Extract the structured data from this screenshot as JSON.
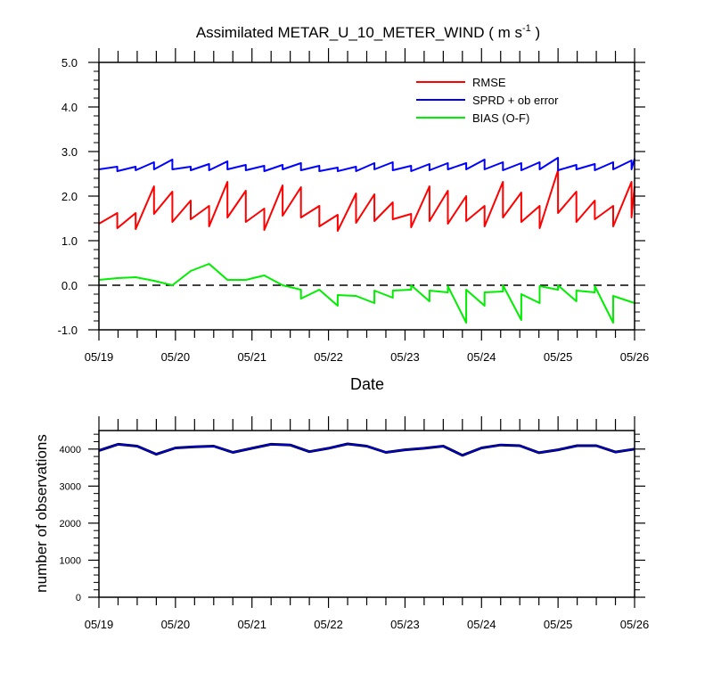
{
  "chart_data": [
    {
      "type": "line",
      "title_main": "Assimilated METAR_U_10_METER_WIND ( m s",
      "title_sup": "-1",
      "title_end": " )",
      "xlabel": "Date",
      "ylabel": "",
      "x_ticks": [
        "05/19",
        "05/20",
        "05/21",
        "05/22",
        "05/23",
        "05/24",
        "05/25",
        "05/26"
      ],
      "xlim": [
        "05/19 00Z",
        "05/26 00Z"
      ],
      "ylim": [
        -1.0,
        5.0
      ],
      "y_ticks": [
        "-1.0",
        "0.0",
        "1.0",
        "2.0",
        "3.0",
        "4.0",
        "5.0"
      ],
      "reference_line": {
        "y": 0.0,
        "style": "dashed"
      },
      "legend_position": "top-right",
      "series": [
        {
          "name": "RMSE",
          "color": "#ff0000",
          "x_days": [
            0.0,
            0.24,
            0.24,
            0.48,
            0.48,
            0.72,
            0.72,
            0.96,
            0.96,
            1.2,
            1.2,
            1.44,
            1.44,
            1.68,
            1.68,
            1.92,
            1.92,
            2.16,
            2.16,
            2.4,
            2.4,
            2.64,
            2.64,
            2.88,
            2.88,
            3.12,
            3.12,
            3.36,
            3.36,
            3.6,
            3.6,
            3.84,
            3.84,
            4.08,
            4.08,
            4.32,
            4.32,
            4.56,
            4.56,
            4.8,
            4.8,
            5.04,
            5.04,
            5.28,
            5.28,
            5.52,
            5.52,
            5.76,
            5.76,
            6.0,
            6.0,
            6.24,
            6.24,
            6.48,
            6.48,
            6.72,
            6.72,
            6.96,
            6.96,
            7.0
          ],
          "values": [
            1.38,
            1.62,
            1.28,
            1.62,
            1.26,
            2.22,
            1.6,
            2.1,
            1.42,
            1.9,
            1.48,
            1.78,
            1.32,
            2.32,
            1.52,
            2.12,
            1.42,
            1.72,
            1.24,
            2.24,
            1.56,
            2.2,
            1.52,
            1.78,
            1.32,
            1.58,
            1.22,
            2.06,
            1.4,
            2.04,
            1.44,
            1.86,
            1.48,
            1.6,
            1.3,
            2.22,
            1.44,
            2.12,
            1.38,
            2.0,
            1.44,
            1.78,
            1.32,
            2.32,
            1.52,
            2.08,
            1.42,
            1.78,
            1.28,
            2.58,
            1.62,
            2.1,
            1.42,
            1.9,
            1.48,
            1.78,
            1.32,
            2.32,
            1.52,
            2.22
          ]
        },
        {
          "name": "SPRD + ob error",
          "color": "#0000ff",
          "x_days": [
            0.0,
            0.24,
            0.24,
            0.48,
            0.48,
            0.72,
            0.72,
            0.96,
            0.96,
            1.2,
            1.2,
            1.44,
            1.44,
            1.68,
            1.68,
            1.92,
            1.92,
            2.16,
            2.16,
            2.4,
            2.4,
            2.64,
            2.64,
            2.88,
            2.88,
            3.12,
            3.12,
            3.36,
            3.36,
            3.6,
            3.6,
            3.84,
            3.84,
            4.08,
            4.08,
            4.32,
            4.32,
            4.56,
            4.56,
            4.8,
            4.8,
            5.04,
            5.04,
            5.28,
            5.28,
            5.52,
            5.52,
            5.76,
            5.76,
            6.0,
            6.0,
            6.24,
            6.24,
            6.48,
            6.48,
            6.72,
            6.72,
            6.96,
            6.96,
            7.0
          ],
          "values": [
            2.6,
            2.66,
            2.56,
            2.66,
            2.58,
            2.76,
            2.6,
            2.82,
            2.6,
            2.66,
            2.58,
            2.72,
            2.58,
            2.78,
            2.6,
            2.7,
            2.58,
            2.68,
            2.56,
            2.7,
            2.6,
            2.74,
            2.58,
            2.68,
            2.56,
            2.64,
            2.56,
            2.66,
            2.56,
            2.74,
            2.6,
            2.76,
            2.58,
            2.68,
            2.56,
            2.72,
            2.58,
            2.74,
            2.6,
            2.74,
            2.6,
            2.82,
            2.6,
            2.76,
            2.58,
            2.74,
            2.58,
            2.76,
            2.6,
            2.86,
            2.58,
            2.7,
            2.6,
            2.72,
            2.58,
            2.76,
            2.6,
            2.8,
            2.6,
            2.84
          ]
        },
        {
          "name": "BIAS (O-F)",
          "color": "#00ee00",
          "x_days": [
            0.0,
            0.24,
            0.48,
            0.72,
            0.96,
            1.2,
            1.44,
            1.68,
            1.92,
            2.16,
            2.4,
            2.64,
            2.64,
            2.88,
            3.12,
            3.12,
            3.36,
            3.6,
            3.6,
            3.84,
            3.84,
            4.08,
            4.08,
            4.32,
            4.32,
            4.56,
            4.56,
            4.8,
            4.8,
            5.04,
            5.04,
            5.28,
            5.28,
            5.52,
            5.52,
            5.76,
            5.76,
            6.0,
            6.0,
            6.24,
            6.24,
            6.48,
            6.48,
            6.72,
            6.72,
            7.0
          ],
          "values": [
            0.12,
            0.16,
            0.18,
            0.1,
            0.0,
            0.32,
            0.48,
            0.12,
            0.12,
            0.22,
            0.0,
            -0.1,
            -0.3,
            -0.1,
            -0.46,
            -0.22,
            -0.24,
            -0.4,
            -0.12,
            -0.28,
            -0.12,
            -0.1,
            0.0,
            -0.36,
            -0.12,
            -0.16,
            -0.02,
            -0.84,
            -0.1,
            -0.46,
            -0.16,
            -0.14,
            0.0,
            -0.78,
            -0.2,
            -0.4,
            -0.02,
            -0.1,
            0.0,
            -0.36,
            -0.12,
            -0.16,
            -0.02,
            -0.84,
            -0.24,
            -0.4
          ]
        }
      ]
    },
    {
      "type": "line",
      "title": "",
      "xlabel": "",
      "ylabel": "number of observations",
      "x_ticks": [
        "05/19",
        "05/20",
        "05/21",
        "05/22",
        "05/23",
        "05/24",
        "05/25",
        "05/26"
      ],
      "xlim": [
        "05/19 00Z",
        "05/26 00Z"
      ],
      "ylim": [
        0,
        4500
      ],
      "y_ticks": [
        "0",
        "1000",
        "2000",
        "3000",
        "4000"
      ],
      "series": [
        {
          "color": "#0000ff",
          "x_days": [
            0.0,
            0.25,
            0.5,
            0.75,
            1.0,
            1.25,
            1.5,
            1.75,
            2.0,
            2.25,
            2.5,
            2.75,
            3.0,
            3.25,
            3.5,
            3.75,
            4.0,
            4.25,
            4.5,
            4.75,
            5.0,
            5.25,
            5.5,
            5.75,
            6.0,
            6.25,
            6.5,
            6.75,
            7.0
          ],
          "values": [
            3960,
            4130,
            4080,
            3860,
            4030,
            4060,
            4080,
            3910,
            4020,
            4130,
            4110,
            3930,
            4020,
            4140,
            4080,
            3910,
            3980,
            4020,
            4080,
            3830,
            4030,
            4110,
            4090,
            3900,
            3980,
            4090,
            4090,
            3920,
            4000
          ]
        }
      ]
    }
  ]
}
